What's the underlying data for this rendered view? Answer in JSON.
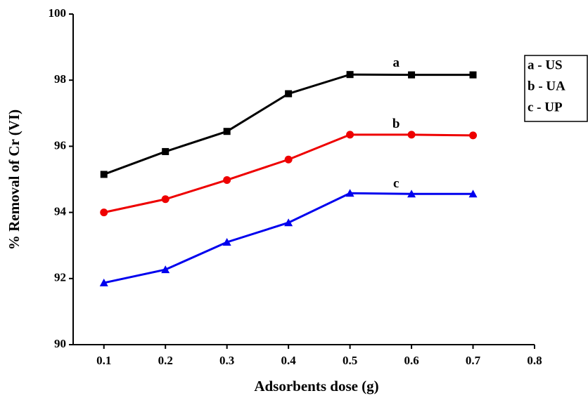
{
  "chart_data": {
    "type": "line",
    "x_label": "Adsorbents dose (g)",
    "y_label": "% Removal of Cr (VI)",
    "x": [
      0.1,
      0.2,
      0.3,
      0.4,
      0.5,
      0.6,
      0.7
    ],
    "series": [
      {
        "name": "a - US",
        "color": "#000000",
        "marker": "square",
        "values": [
          95.15,
          95.84,
          96.45,
          97.59,
          98.17,
          98.16,
          98.16
        ]
      },
      {
        "name": "b - UA",
        "color": "#ee0000",
        "marker": "circle",
        "values": [
          94.0,
          94.4,
          94.98,
          95.6,
          96.35,
          96.35,
          96.33
        ]
      },
      {
        "name": "c - UP",
        "color": "#0000ee",
        "marker": "triangle",
        "values": [
          91.87,
          92.27,
          93.1,
          93.69,
          94.58,
          94.56,
          94.56
        ]
      }
    ],
    "annotations": [
      {
        "text": "a",
        "x": 0.575,
        "y": 98.5
      },
      {
        "text": "b",
        "x": 0.575,
        "y": 96.65
      },
      {
        "text": "c",
        "x": 0.575,
        "y": 94.85
      }
    ],
    "xlim": [
      0.05,
      0.8
    ],
    "xticks": [
      0.1,
      0.2,
      0.3,
      0.4,
      0.5,
      0.6,
      0.7,
      0.8
    ],
    "ylim": [
      90,
      100
    ],
    "yticks": [
      90,
      92,
      94,
      96,
      98,
      100
    ],
    "legend": "right"
  }
}
